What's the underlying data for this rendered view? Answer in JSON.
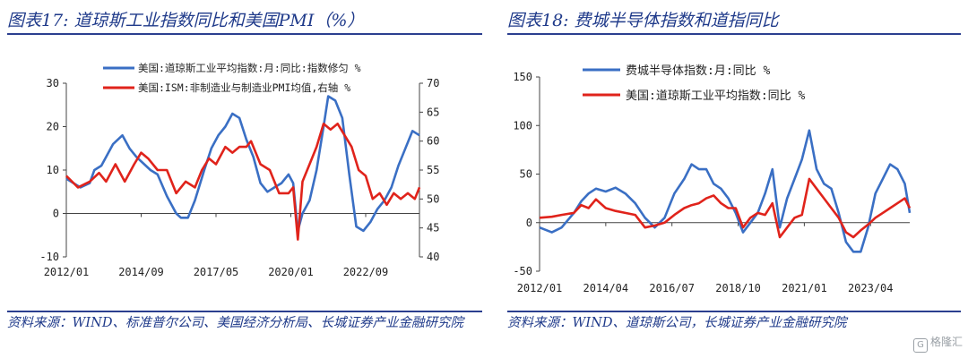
{
  "left_panel": {
    "title": "图表17:  道琼斯工业指数同比和美国PMI（%）",
    "source": "资料来源：WIND、标准普尔公司、美国经济分析局、长城证券产业金融研究院",
    "legend": [
      "美国:道琼斯工业平均指数:月:同比:指数修匀 %",
      "美国:ISM:非制造业与制造业PMI均值,右轴 %"
    ]
  },
  "right_panel": {
    "title": "图表18:  费城半导体指数和道指同比",
    "source": "资料来源：WIND、道琼斯公司，长城证券产业金融研究院",
    "legend": [
      "费城半导体指数:月:同比 %",
      "美国:道琼斯工业平均指数:同比 %"
    ]
  },
  "watermark": "格隆汇",
  "colors": {
    "blue": "#3a6fc4",
    "red": "#e0231b",
    "title": "#1f3a8a",
    "rule": "#2b3f8f"
  },
  "chart_data": [
    {
      "type": "line",
      "x_ticks": [
        "2012/01",
        "2014/09",
        "2017/05",
        "2020/01",
        "2022/09"
      ],
      "x_range": [
        "2012/01",
        "2024/08"
      ],
      "y_ticks_left": [
        "30",
        "20",
        "10",
        "0",
        "-10"
      ],
      "ylim_left": [
        -10,
        30
      ],
      "y_ticks_right": [
        "70",
        "65",
        "60",
        "55",
        "50",
        "45",
        "40"
      ],
      "ylim_right": [
        40,
        70
      ],
      "series": [
        {
          "name": "美国:道琼斯工业平均指数:月:同比:指数修匀 %",
          "axis": "left",
          "points": [
            [
              "2012/01",
              8
            ],
            [
              "2012/07",
              6
            ],
            [
              "2012/11",
              7
            ],
            [
              "2013/01",
              10
            ],
            [
              "2013/04",
              11
            ],
            [
              "2013/09",
              16
            ],
            [
              "2014/01",
              18
            ],
            [
              "2014/04",
              15
            ],
            [
              "2014/07",
              13
            ],
            [
              "2015/01",
              10
            ],
            [
              "2015/04",
              9
            ],
            [
              "2015/08",
              4
            ],
            [
              "2015/12",
              0
            ],
            [
              "2016/02",
              -1
            ],
            [
              "2016/05",
              -1
            ],
            [
              "2016/08",
              3
            ],
            [
              "2016/12",
              10
            ],
            [
              "2017/03",
              15
            ],
            [
              "2017/06",
              18
            ],
            [
              "2017/09",
              20
            ],
            [
              "2017/12",
              23
            ],
            [
              "2018/03",
              22
            ],
            [
              "2018/06",
              17
            ],
            [
              "2018/09",
              13
            ],
            [
              "2018/12",
              7
            ],
            [
              "2019/03",
              5
            ],
            [
              "2019/06",
              6
            ],
            [
              "2019/09",
              7
            ],
            [
              "2019/12",
              9
            ],
            [
              "2020/02",
              7
            ],
            [
              "2020/04",
              -4
            ],
            [
              "2020/06",
              0
            ],
            [
              "2020/09",
              3
            ],
            [
              "2020/12",
              10
            ],
            [
              "2021/03",
              20
            ],
            [
              "2021/05",
              27
            ],
            [
              "2021/08",
              26
            ],
            [
              "2021/11",
              22
            ],
            [
              "2022/02",
              9
            ],
            [
              "2022/05",
              -3
            ],
            [
              "2022/08",
              -4
            ],
            [
              "2022/11",
              -2
            ],
            [
              "2023/02",
              1
            ],
            [
              "2023/05",
              3
            ],
            [
              "2023/08",
              6
            ],
            [
              "2023/11",
              11
            ],
            [
              "2024/02",
              15
            ],
            [
              "2024/05",
              19
            ],
            [
              "2024/08",
              18
            ]
          ]
        },
        {
          "name": "美国:ISM:非制造业与制造业PMI均值,右轴 %",
          "axis": "right",
          "points": [
            [
              "2012/01",
              54
            ],
            [
              "2012/06",
              52
            ],
            [
              "2012/11",
              53
            ],
            [
              "2013/03",
              54.5
            ],
            [
              "2013/06",
              53
            ],
            [
              "2013/10",
              56
            ],
            [
              "2014/02",
              53
            ],
            [
              "2014/06",
              56
            ],
            [
              "2014/09",
              58
            ],
            [
              "2014/12",
              57
            ],
            [
              "2015/04",
              55
            ],
            [
              "2015/08",
              55
            ],
            [
              "2015/12",
              51
            ],
            [
              "2016/04",
              53
            ],
            [
              "2016/08",
              52
            ],
            [
              "2016/11",
              55
            ],
            [
              "2017/02",
              57
            ],
            [
              "2017/05",
              56
            ],
            [
              "2017/09",
              59
            ],
            [
              "2017/12",
              58
            ],
            [
              "2018/03",
              59
            ],
            [
              "2018/06",
              59
            ],
            [
              "2018/08",
              60
            ],
            [
              "2018/12",
              56
            ],
            [
              "2019/04",
              55
            ],
            [
              "2019/08",
              51
            ],
            [
              "2019/12",
              51
            ],
            [
              "2020/02",
              52
            ],
            [
              "2020/04",
              43
            ],
            [
              "2020/06",
              53
            ],
            [
              "2020/09",
              56
            ],
            [
              "2020/12",
              59
            ],
            [
              "2021/03",
              63
            ],
            [
              "2021/06",
              62
            ],
            [
              "2021/09",
              63
            ],
            [
              "2021/12",
              61
            ],
            [
              "2022/03",
              59
            ],
            [
              "2022/06",
              55
            ],
            [
              "2022/09",
              54
            ],
            [
              "2022/12",
              50
            ],
            [
              "2023/03",
              51
            ],
            [
              "2023/06",
              49
            ],
            [
              "2023/09",
              51
            ],
            [
              "2023/12",
              50
            ],
            [
              "2024/03",
              51
            ],
            [
              "2024/06",
              50
            ],
            [
              "2024/08",
              52
            ]
          ]
        }
      ]
    },
    {
      "type": "line",
      "x_ticks": [
        "2012/01",
        "2014/04",
        "2016/07",
        "2018/10",
        "2021/01",
        "2023/04"
      ],
      "x_range": [
        "2012/01",
        "2024/08"
      ],
      "y_ticks": [
        "150",
        "100",
        "50",
        "0",
        "-50"
      ],
      "ylim": [
        -50,
        150
      ],
      "series": [
        {
          "name": "费城半导体指数:月:同比 %",
          "points": [
            [
              "2012/01",
              -5
            ],
            [
              "2012/06",
              -10
            ],
            [
              "2012/10",
              -5
            ],
            [
              "2013/03",
              10
            ],
            [
              "2013/06",
              22
            ],
            [
              "2013/09",
              30
            ],
            [
              "2013/12",
              35
            ],
            [
              "2014/04",
              32
            ],
            [
              "2014/08",
              36
            ],
            [
              "2014/12",
              30
            ],
            [
              "2015/04",
              20
            ],
            [
              "2015/08",
              5
            ],
            [
              "2015/12",
              -5
            ],
            [
              "2016/04",
              5
            ],
            [
              "2016/08",
              30
            ],
            [
              "2016/12",
              45
            ],
            [
              "2017/03",
              60
            ],
            [
              "2017/06",
              55
            ],
            [
              "2017/09",
              55
            ],
            [
              "2017/12",
              40
            ],
            [
              "2018/03",
              35
            ],
            [
              "2018/06",
              25
            ],
            [
              "2018/09",
              10
            ],
            [
              "2018/12",
              -10
            ],
            [
              "2019/03",
              0
            ],
            [
              "2019/06",
              10
            ],
            [
              "2019/09",
              30
            ],
            [
              "2019/12",
              55
            ],
            [
              "2020/03",
              -5
            ],
            [
              "2020/06",
              25
            ],
            [
              "2020/09",
              45
            ],
            [
              "2020/12",
              65
            ],
            [
              "2021/03",
              95
            ],
            [
              "2021/06",
              55
            ],
            [
              "2021/09",
              40
            ],
            [
              "2021/12",
              35
            ],
            [
              "2022/03",
              10
            ],
            [
              "2022/06",
              -20
            ],
            [
              "2022/09",
              -30
            ],
            [
              "2022/12",
              -30
            ],
            [
              "2023/03",
              -5
            ],
            [
              "2023/06",
              30
            ],
            [
              "2023/09",
              45
            ],
            [
              "2023/12",
              60
            ],
            [
              "2024/03",
              55
            ],
            [
              "2024/06",
              40
            ],
            [
              "2024/08",
              10
            ]
          ]
        },
        {
          "name": "美国:道琼斯工业平均指数:同比 %",
          "points": [
            [
              "2012/01",
              5
            ],
            [
              "2012/06",
              6
            ],
            [
              "2012/10",
              8
            ],
            [
              "2013/03",
              10
            ],
            [
              "2013/06",
              18
            ],
            [
              "2013/09",
              15
            ],
            [
              "2013/12",
              24
            ],
            [
              "2014/04",
              15
            ],
            [
              "2014/08",
              12
            ],
            [
              "2014/12",
              10
            ],
            [
              "2015/04",
              8
            ],
            [
              "2015/08",
              -5
            ],
            [
              "2015/12",
              -3
            ],
            [
              "2016/04",
              0
            ],
            [
              "2016/08",
              8
            ],
            [
              "2016/12",
              15
            ],
            [
              "2017/03",
              18
            ],
            [
              "2017/06",
              20
            ],
            [
              "2017/09",
              25
            ],
            [
              "2017/12",
              28
            ],
            [
              "2018/03",
              20
            ],
            [
              "2018/06",
              15
            ],
            [
              "2018/09",
              15
            ],
            [
              "2018/12",
              -5
            ],
            [
              "2019/03",
              5
            ],
            [
              "2019/06",
              10
            ],
            [
              "2019/09",
              8
            ],
            [
              "2019/12",
              20
            ],
            [
              "2020/03",
              -15
            ],
            [
              "2020/06",
              -5
            ],
            [
              "2020/09",
              5
            ],
            [
              "2020/12",
              8
            ],
            [
              "2021/03",
              45
            ],
            [
              "2021/06",
              35
            ],
            [
              "2021/09",
              25
            ],
            [
              "2021/12",
              15
            ],
            [
              "2022/03",
              5
            ],
            [
              "2022/06",
              -10
            ],
            [
              "2022/09",
              -15
            ],
            [
              "2022/12",
              -8
            ],
            [
              "2023/03",
              -2
            ],
            [
              "2023/06",
              5
            ],
            [
              "2023/09",
              10
            ],
            [
              "2023/12",
              15
            ],
            [
              "2024/03",
              20
            ],
            [
              "2024/06",
              25
            ],
            [
              "2024/08",
              15
            ]
          ]
        }
      ]
    }
  ]
}
